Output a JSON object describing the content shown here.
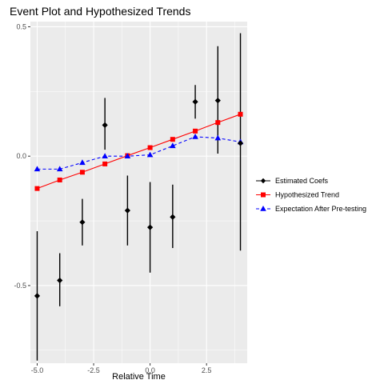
{
  "chart_data": {
    "type": "line",
    "title": "Event Plot and Hypothesized Trends",
    "xlabel": "Relative Time",
    "ylabel": "",
    "xlim": [
      -5.3,
      4.3
    ],
    "ylim": [
      -0.8,
      0.52
    ],
    "x_ticks": [
      -5.0,
      -2.5,
      0.0,
      2.5
    ],
    "x_tick_labels": [
      "-5.0",
      "-2.5",
      "0.0",
      "2.5"
    ],
    "y_ticks": [
      -0.5,
      0.0,
      0.5
    ],
    "y_tick_labels": [
      "-0.5",
      "0.0",
      "0.5"
    ],
    "grid": true,
    "legend_position": "right",
    "series": [
      {
        "name": "Estimated Coefs",
        "kind": "pointrange",
        "color": "#000000",
        "marker": "diamond",
        "x": [
          -5,
          -4,
          -3,
          -2,
          -1,
          0,
          1,
          2,
          3,
          4
        ],
        "y": [
          -0.54,
          -0.48,
          -0.255,
          0.12,
          -0.21,
          -0.275,
          -0.235,
          0.21,
          0.215,
          0.05
        ],
        "lower": [
          -0.79,
          -0.58,
          -0.345,
          0.025,
          -0.345,
          -0.45,
          -0.355,
          0.145,
          0.01,
          -0.365
        ],
        "upper": [
          -0.29,
          -0.375,
          -0.165,
          0.225,
          -0.075,
          -0.1,
          -0.11,
          0.275,
          0.425,
          0.475
        ]
      },
      {
        "name": "Hypothesized Trend",
        "kind": "line",
        "color": "#ff0000",
        "marker": "square",
        "x": [
          -5,
          -4,
          -3,
          -2,
          -1,
          0,
          1,
          2,
          3,
          4
        ],
        "y": [
          -0.125,
          -0.092,
          -0.062,
          -0.03,
          0.002,
          0.033,
          0.065,
          0.097,
          0.13,
          0.162
        ]
      },
      {
        "name": "Expectation After Pre-testing",
        "kind": "dashed-line",
        "color": "#0000ff",
        "marker": "triangle",
        "x": [
          -5,
          -4,
          -3,
          -2,
          -1,
          0,
          1,
          2,
          3,
          4
        ],
        "y": [
          -0.05,
          -0.05,
          -0.025,
          0.0,
          0.0,
          0.005,
          0.04,
          0.075,
          0.07,
          0.055
        ]
      }
    ]
  }
}
